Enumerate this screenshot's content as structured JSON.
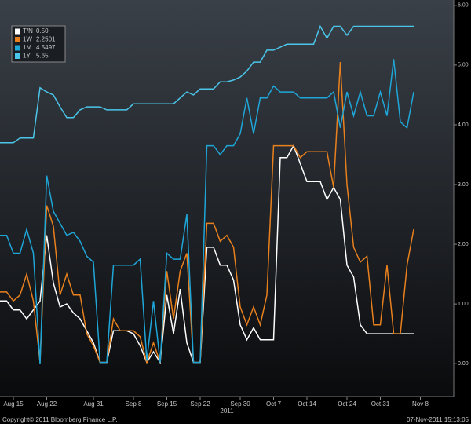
{
  "chart_data": {
    "type": "line",
    "categories": [
      null,
      null,
      "Aug 15",
      null,
      null,
      null,
      null,
      "Aug 22",
      null,
      null,
      null,
      null,
      null,
      null,
      "Aug 31",
      null,
      null,
      null,
      null,
      null,
      "Sep 8",
      null,
      null,
      null,
      null,
      "Sep 15",
      null,
      null,
      null,
      null,
      "Sep 22",
      null,
      null,
      null,
      null,
      null,
      "Sep 30",
      null,
      null,
      null,
      null,
      "Oct 7",
      null,
      null,
      null,
      null,
      "Oct 14",
      null,
      null,
      null,
      null,
      null,
      "Oct 24",
      null,
      null,
      null,
      null,
      "Oct 31",
      null,
      null,
      null,
      null,
      null,
      "Nov 8"
    ],
    "x_axis_label": "2011",
    "series": [
      {
        "name": "T/N",
        "legend_value": "0.50",
        "color": "#ffffff",
        "values": [
          1.05,
          1.05,
          0.9,
          0.9,
          0.75,
          0.9,
          1.05,
          2.15,
          1.35,
          0.95,
          1.0,
          0.85,
          0.75,
          0.55,
          0.35,
          0.02,
          0.02,
          0.55,
          0.55,
          0.55,
          0.5,
          0.3,
          0.02,
          0.2,
          0.02,
          1.15,
          0.5,
          1.25,
          0.35,
          0.02,
          0.02,
          1.95,
          1.95,
          1.65,
          1.65,
          1.4,
          0.65,
          0.4,
          0.6,
          0.4,
          0.4,
          0.4,
          3.45,
          3.45,
          3.65,
          3.35,
          3.05,
          3.05,
          3.05,
          2.75,
          2.95,
          2.75,
          1.65,
          1.45,
          0.65,
          0.5,
          0.5,
          0.5,
          0.5,
          0.5,
          0.5,
          0.5,
          0.5,
          null
        ]
      },
      {
        "name": "1W",
        "legend_value": "2.2501",
        "color": "#e8801e",
        "values": [
          1.2,
          1.2,
          1.05,
          1.15,
          1.5,
          1.05,
          0.02,
          2.65,
          2.3,
          1.15,
          1.5,
          1.15,
          1.15,
          0.5,
          0.3,
          0.02,
          0.02,
          0.75,
          0.55,
          0.55,
          0.55,
          0.45,
          0.02,
          0.35,
          0.02,
          1.55,
          0.75,
          1.55,
          1.85,
          0.02,
          0.02,
          2.35,
          2.35,
          2.05,
          2.15,
          1.95,
          0.95,
          0.65,
          0.95,
          0.65,
          1.15,
          3.65,
          3.65,
          3.65,
          3.65,
          3.45,
          3.55,
          3.55,
          3.55,
          3.55,
          2.95,
          5.05,
          3.0,
          1.95,
          1.7,
          1.8,
          0.65,
          0.65,
          1.65,
          0.5,
          0.5,
          1.65,
          2.25,
          null
        ]
      },
      {
        "name": "1M",
        "legend_value": "4.5497",
        "color": "#1fa6d8",
        "values": [
          2.15,
          2.15,
          1.85,
          1.85,
          2.25,
          1.85,
          0.0,
          3.15,
          2.55,
          2.35,
          2.15,
          2.2,
          2.05,
          1.8,
          1.7,
          0.02,
          0.02,
          1.65,
          1.65,
          1.65,
          1.65,
          1.75,
          0.05,
          1.05,
          0.02,
          1.85,
          1.75,
          1.75,
          2.5,
          0.02,
          0.02,
          3.65,
          3.65,
          3.5,
          3.65,
          3.65,
          3.85,
          4.45,
          3.85,
          4.45,
          4.45,
          4.65,
          4.55,
          4.55,
          4.55,
          4.45,
          4.45,
          4.45,
          4.45,
          4.45,
          4.55,
          3.95,
          4.55,
          4.15,
          4.55,
          4.15,
          4.15,
          4.55,
          4.15,
          5.1,
          4.05,
          3.95,
          4.55,
          null
        ]
      },
      {
        "name": "1Y",
        "legend_value": "5.65",
        "color": "#4ac6ea",
        "values": [
          3.7,
          3.7,
          3.7,
          3.78,
          3.78,
          3.78,
          4.62,
          4.55,
          4.5,
          4.3,
          4.12,
          4.12,
          4.25,
          4.3,
          4.3,
          4.3,
          4.25,
          4.25,
          4.25,
          4.25,
          4.35,
          4.35,
          4.35,
          4.35,
          4.35,
          4.35,
          4.35,
          4.45,
          4.55,
          4.5,
          4.6,
          4.6,
          4.6,
          4.72,
          4.72,
          4.75,
          4.8,
          4.9,
          5.05,
          5.05,
          5.25,
          5.25,
          5.3,
          5.35,
          5.35,
          5.35,
          5.35,
          5.35,
          5.65,
          5.45,
          5.65,
          5.65,
          5.5,
          5.65,
          5.65,
          5.65,
          5.65,
          5.65,
          5.65,
          5.65,
          5.65,
          5.65,
          5.65,
          null
        ]
      }
    ],
    "ylim": [
      -0.55,
      6.09
    ],
    "yticks": [
      {
        "value": 0,
        "label": "0.00"
      },
      {
        "value": 1,
        "label": "1.00"
      },
      {
        "value": 2,
        "label": "2.00"
      },
      {
        "value": 3,
        "label": "3.00"
      },
      {
        "value": 4,
        "label": "4.00"
      },
      {
        "value": 5,
        "label": "5.00"
      },
      {
        "value": 6,
        "label": "6.00"
      }
    ],
    "y_axis_side": "right",
    "legend": "top-left",
    "copyright": "Copyright© 2011 Bloomberg Finance L.P.",
    "timestamp": "07-Nov-2011 15:13:05"
  }
}
